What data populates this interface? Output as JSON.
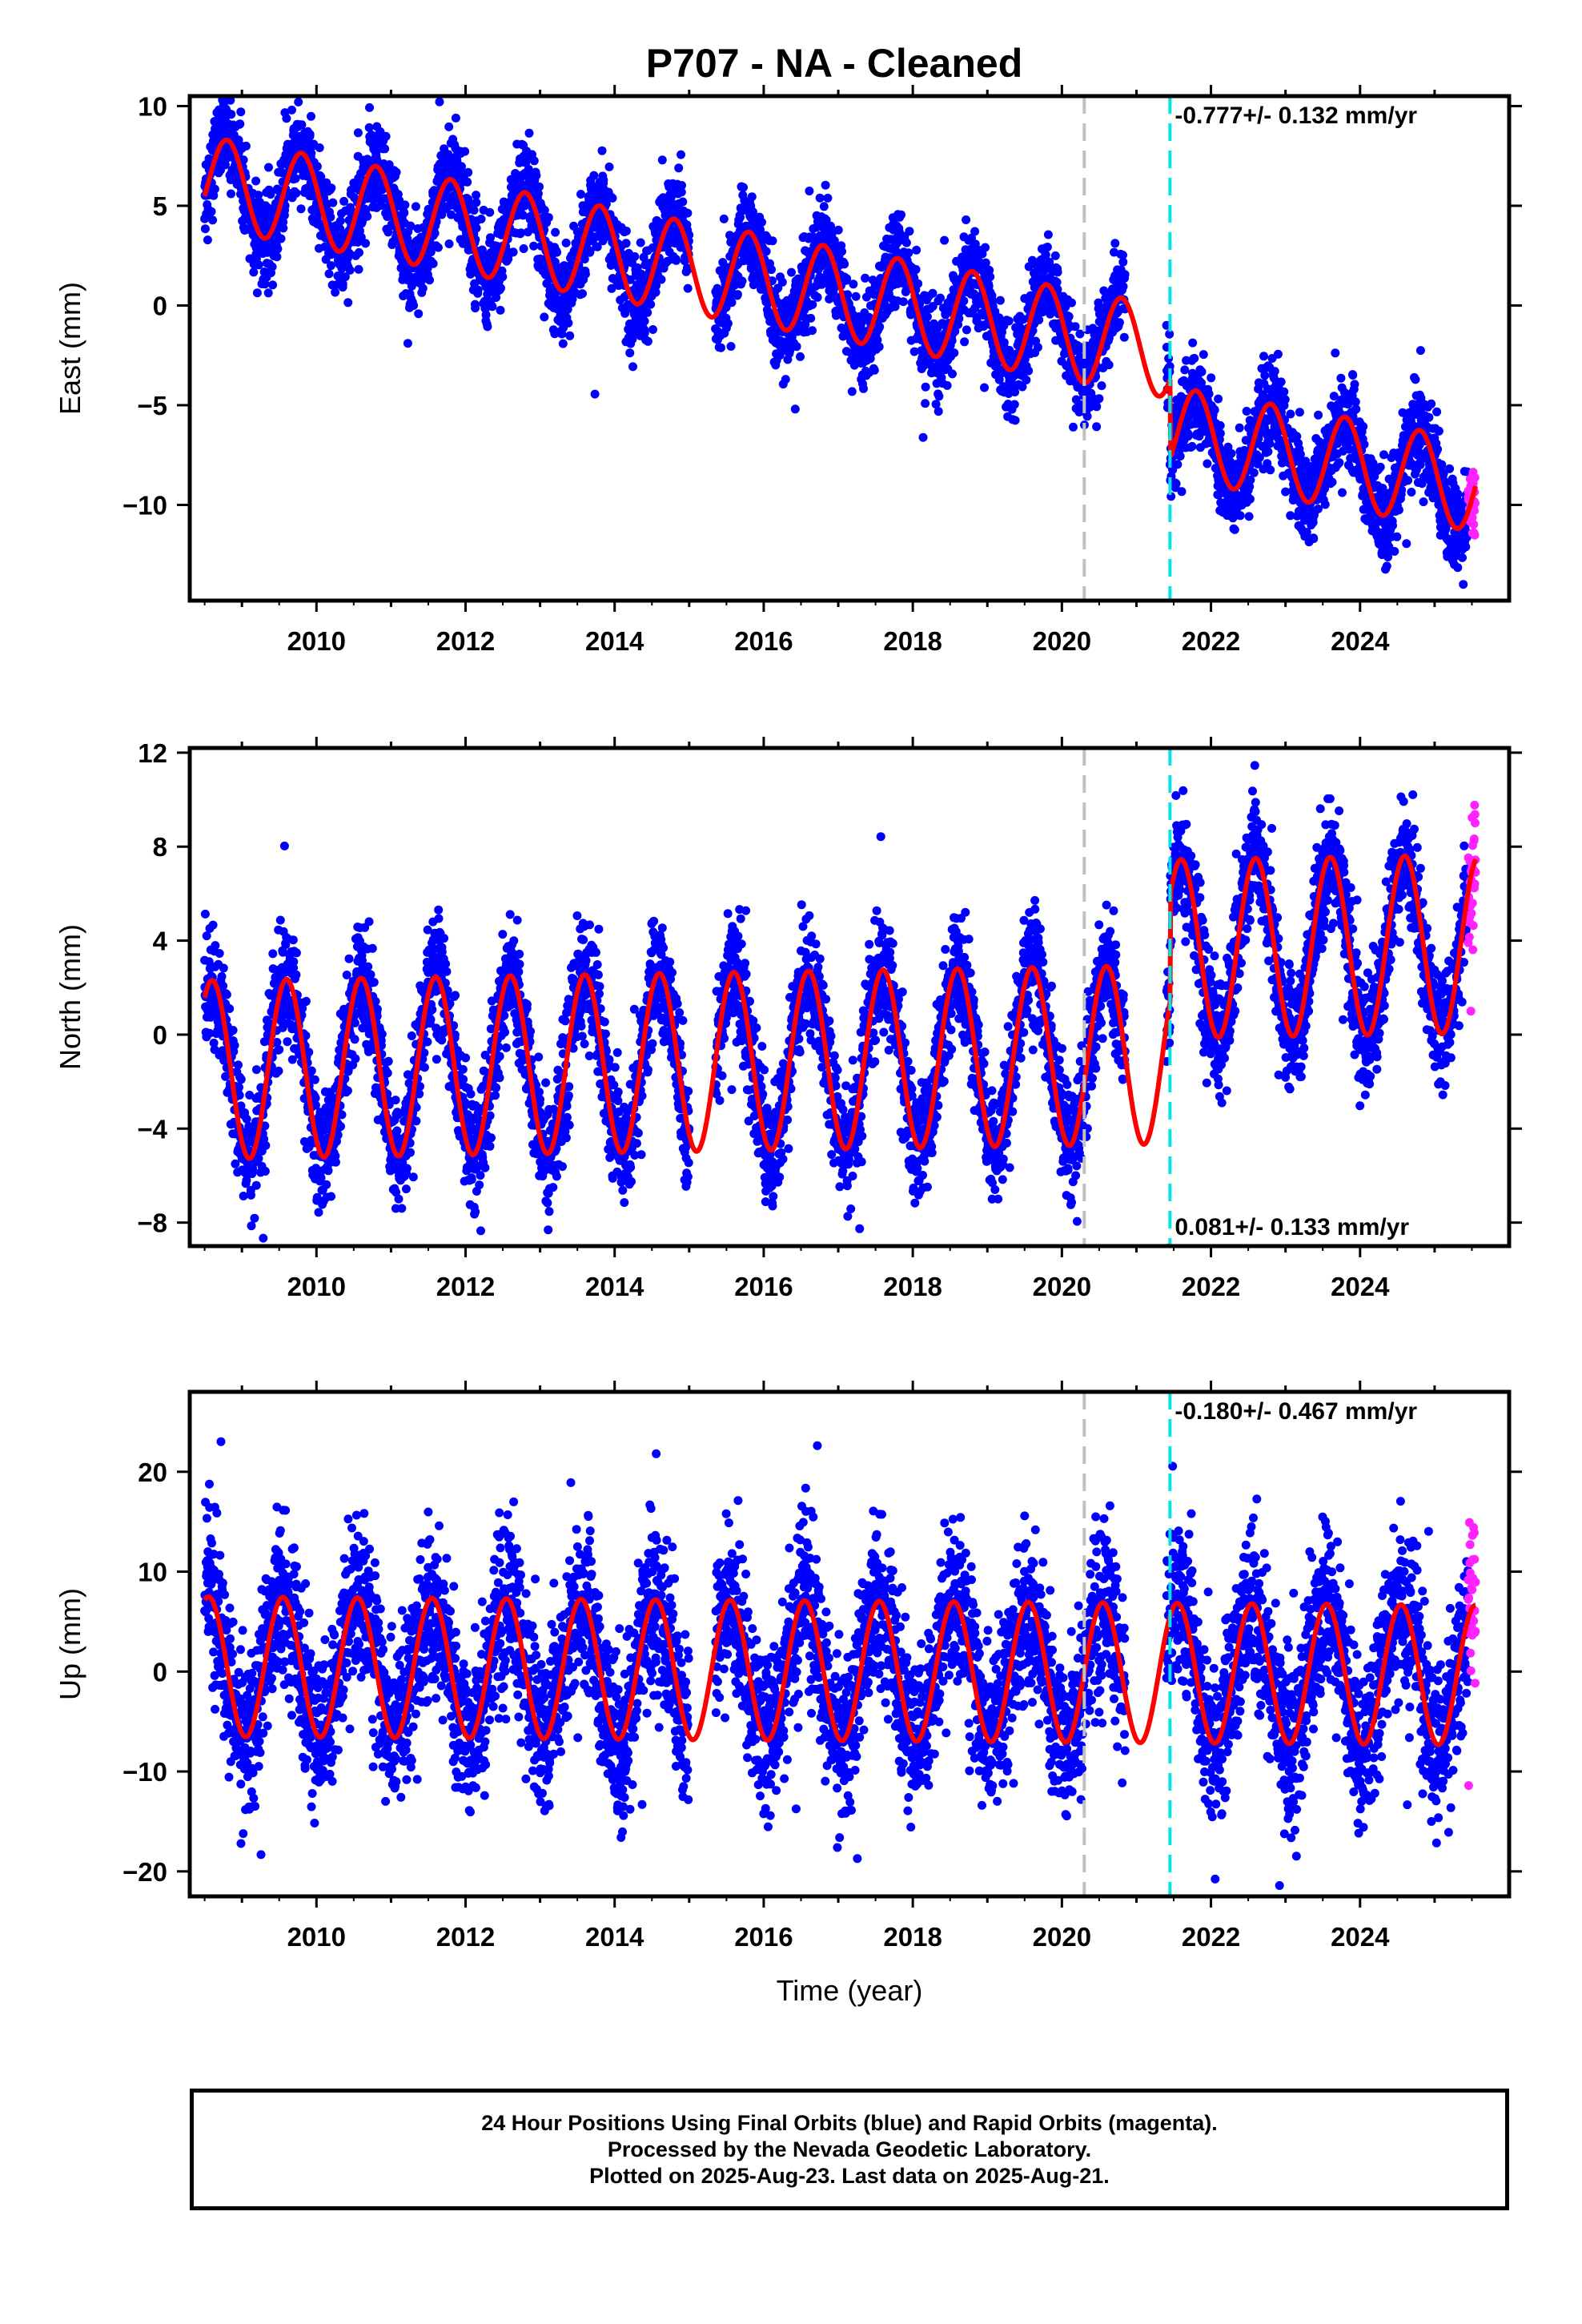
{
  "title": "P707  - NA - Cleaned",
  "footer": {
    "line1": "24 Hour Positions Using Final Orbits (blue) and Rapid Orbits (magenta).",
    "line2": "Processed by the Nevada Geodetic Laboratory.",
    "line3": "Plotted on 2025-Aug-23. Last data on 2025-Aug-21."
  },
  "colors": {
    "final_points": "#0000ff",
    "rapid_points": "#ff22ff",
    "model": "#ff0000",
    "gray_line": "#c0c0c0",
    "cyan_line": "#00e5e5"
  },
  "chart_data": [
    {
      "type": "scatter",
      "ylabel": "East (mm)",
      "xlabel": "",
      "xlim": [
        2008.3,
        2026.0
      ],
      "ylim": [
        -14.8,
        10.5
      ],
      "xticks": [
        2010,
        2012,
        2014,
        2016,
        2018,
        2020,
        2022,
        2024
      ],
      "xtick_labels": [
        "2010",
        "2012",
        "2014",
        "2016",
        "2018",
        "2020",
        "2022",
        "2024"
      ],
      "yticks": [
        -10,
        -5,
        0,
        5,
        10
      ],
      "ytick_labels": [
        "−10",
        "−5",
        "0",
        "5",
        "10"
      ],
      "rate_label": "-0.777+/- 0.132 mm/yr",
      "rate_position": "top-right",
      "vlines": [
        {
          "x": 2020.3,
          "color": "gray"
        },
        {
          "x": 2021.45,
          "color": "cyan"
        }
      ],
      "data_start": 2008.5,
      "data_end": 2025.55,
      "rapid_start": 2025.45,
      "model": {
        "intercept": 6.2,
        "trend": -0.66,
        "amplitude": 2.3,
        "phase": 0.8,
        "offsets": [
          {
            "x": 2021.45,
            "step": -4.0
          }
        ],
        "noise": 1.1,
        "model_points_x": [
          2008.5,
          2009.0,
          2009.5,
          2010.0,
          2010.5,
          2011.0,
          2011.5,
          2012.0,
          2012.5,
          2013.0,
          2013.5,
          2014.0,
          2014.5,
          2015.0,
          2015.5,
          2016.0,
          2016.5,
          2017.0,
          2017.5,
          2018.0,
          2018.5,
          2019.0,
          2019.5,
          2020.0,
          2020.5,
          2021.0,
          2021.4,
          2021.5,
          2022.0,
          2022.5,
          2023.0,
          2023.5,
          2024.0,
          2024.5,
          2025.0,
          2025.55
        ]
      }
    },
    {
      "type": "scatter",
      "ylabel": "North (mm)",
      "xlabel": "",
      "xlim": [
        2008.3,
        2026.0
      ],
      "ylim": [
        -9.0,
        12.2
      ],
      "xticks": [
        2010,
        2012,
        2014,
        2016,
        2018,
        2020,
        2022,
        2024
      ],
      "xtick_labels": [
        "2010",
        "2012",
        "2014",
        "2016",
        "2018",
        "2020",
        "2022",
        "2024"
      ],
      "yticks": [
        -8,
        -4,
        0,
        4,
        8,
        12
      ],
      "ytick_labels": [
        "−8",
        "−4",
        "0",
        "4",
        "8",
        "12"
      ],
      "rate_label": "0.081+/- 0.133 mm/yr",
      "rate_position": "bottom-right",
      "vlines": [
        {
          "x": 2020.3,
          "color": "gray"
        },
        {
          "x": 2021.45,
          "color": "cyan"
        }
      ],
      "data_start": 2008.5,
      "data_end": 2025.55,
      "rapid_start": 2025.45,
      "model": {
        "intercept": -1.5,
        "trend": 0.05,
        "amplitude": 3.8,
        "phase": 0.6,
        "offsets": [
          {
            "x": 2021.45,
            "step": 4.5
          }
        ],
        "noise": 1.2
      }
    },
    {
      "type": "scatter",
      "ylabel": "Up (mm)",
      "xlabel": "Time (year)",
      "xlim": [
        2008.3,
        2026.0
      ],
      "ylim": [
        -22.5,
        28.0
      ],
      "xticks": [
        2010,
        2012,
        2014,
        2016,
        2018,
        2020,
        2022,
        2024
      ],
      "xtick_labels": [
        "2010",
        "2012",
        "2014",
        "2016",
        "2018",
        "2020",
        "2022",
        "2024"
      ],
      "yticks": [
        -20,
        -10,
        0,
        10,
        20
      ],
      "ytick_labels": [
        "−20",
        "−10",
        "0",
        "10",
        "20"
      ],
      "rate_label": "-0.180+/- 0.467 mm/yr",
      "rate_position": "top-right",
      "vlines": [
        {
          "x": 2020.3,
          "color": "gray"
        },
        {
          "x": 2021.45,
          "color": "cyan"
        }
      ],
      "data_start": 2008.5,
      "data_end": 2025.55,
      "rapid_start": 2025.45,
      "model": {
        "intercept": 0.5,
        "trend": -0.05,
        "amplitude": 7.0,
        "phase": 0.55,
        "offsets": [],
        "noise": 4.0
      }
    }
  ]
}
